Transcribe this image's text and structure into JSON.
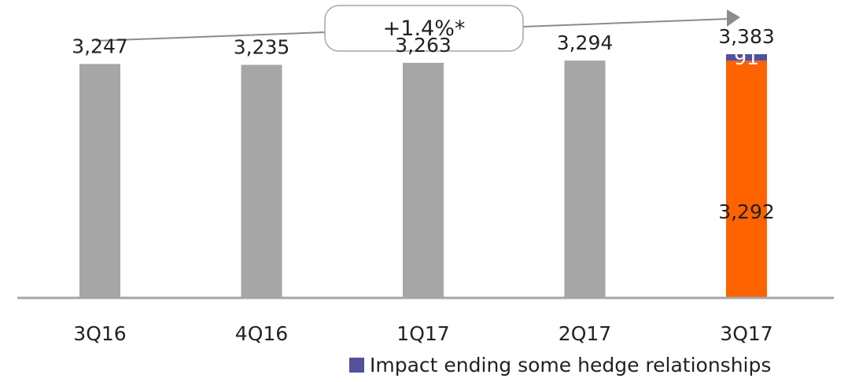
{
  "chart_data": {
    "type": "bar",
    "categories": [
      "3Q16",
      "4Q16",
      "1Q17",
      "2Q17",
      "3Q17"
    ],
    "values": [
      3247,
      3235,
      3263,
      3294,
      3292
    ],
    "value_labels": [
      "3,247",
      "3,235",
      "3,263",
      "3,294",
      "3,292"
    ],
    "stacked_segment": {
      "category": "3Q17",
      "name": "Impact ending some hedge relationships",
      "value": 91,
      "value_label": "91"
    },
    "total_label": {
      "category": "3Q17",
      "value": 3383,
      "text": "3,383"
    },
    "growth_annotation": "+1.4%*",
    "legend": {
      "position": "bottom-right",
      "entries": [
        "Impact ending some hedge relationships"
      ]
    },
    "ylim": [
      0,
      3700
    ],
    "title": "",
    "xlabel": "",
    "ylabel": "",
    "grid": false,
    "colors": {
      "bar": "#a6a6a6",
      "highlight_bar": "#ff6200",
      "segment": "#525199",
      "axis": "#a6a6a6",
      "arrow": "#8c8c8c"
    }
  }
}
